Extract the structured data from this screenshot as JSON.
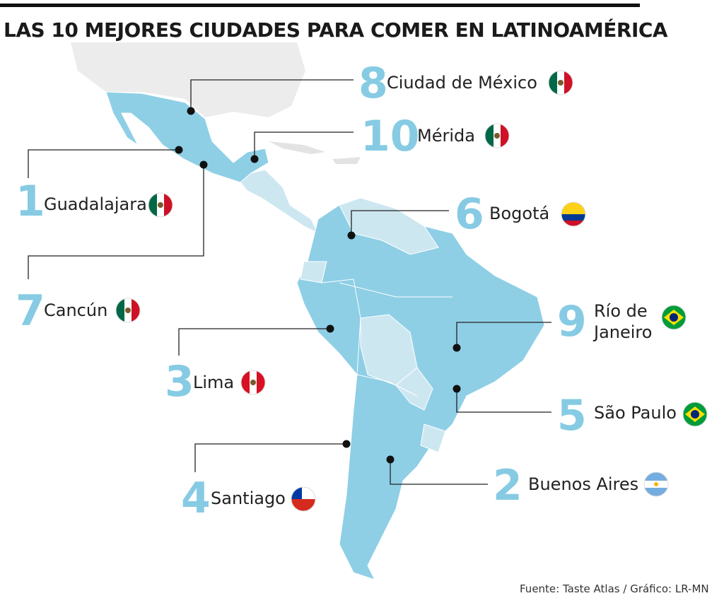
{
  "header": {
    "title": "LAS 10 MEJORES CIUDADES PARA COMER EN LATINOAMÉRICA"
  },
  "cities": [
    {
      "rank": 8,
      "name": "Ciudad de México"
    },
    {
      "rank": 10,
      "name": "Mérida"
    },
    {
      "rank": 1,
      "name": "Guadalajara"
    },
    {
      "rank": 6,
      "name": "Bogotá"
    },
    {
      "rank": 7,
      "name": "Cancún"
    },
    {
      "rank": 9,
      "name": "Río de Janeiro"
    },
    {
      "rank": 3,
      "name": "Lima"
    },
    {
      "rank": 5,
      "name": "São Paulo"
    },
    {
      "rank": 2,
      "name": "Buenos Aires"
    },
    {
      "rank": 4,
      "name": "Santiago"
    }
  ],
  "footer": {
    "source": "Fuente: Taste Atlas / Gráfico: LR-MN"
  }
}
